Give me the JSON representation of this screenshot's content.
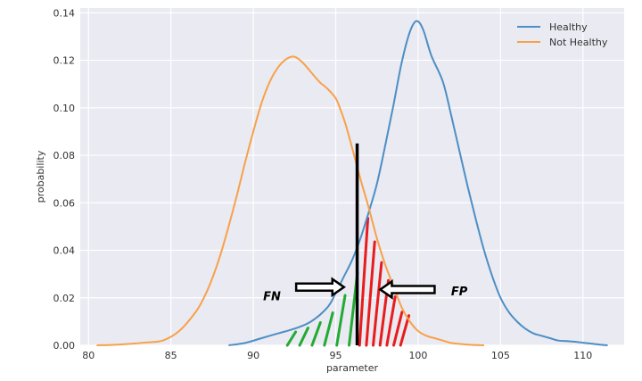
{
  "chart_data": {
    "type": "line",
    "xlabel": "parameter",
    "ylabel": "probability",
    "xlim": [
      79.5,
      112.5
    ],
    "ylim": [
      0,
      0.142
    ],
    "x_ticks": [
      80,
      85,
      90,
      95,
      100,
      105,
      110
    ],
    "y_ticks": [
      0.0,
      0.02,
      0.04,
      0.06,
      0.08,
      0.1,
      0.12,
      0.14
    ],
    "x_tick_labels": [
      "80",
      "85",
      "90",
      "95",
      "100",
      "105",
      "110"
    ],
    "y_tick_labels": [
      "0.00",
      "0.02",
      "0.04",
      "0.06",
      "0.08",
      "0.10",
      "0.12",
      "0.14"
    ],
    "grid": true,
    "background": "#eaeaf2",
    "legend_position": "top-right",
    "series": [
      {
        "name": "Healthy",
        "color": "#4c8fc4",
        "points": [
          [
            88.5,
            0.0
          ],
          [
            89.5,
            0.001
          ],
          [
            90.5,
            0.003
          ],
          [
            91.5,
            0.005
          ],
          [
            92.5,
            0.007
          ],
          [
            93.5,
            0.01
          ],
          [
            94.5,
            0.016
          ],
          [
            95.0,
            0.022
          ],
          [
            95.5,
            0.029
          ],
          [
            96.0,
            0.036
          ],
          [
            96.5,
            0.045
          ],
          [
            97.0,
            0.056
          ],
          [
            97.5,
            0.068
          ],
          [
            98.0,
            0.084
          ],
          [
            98.5,
            0.101
          ],
          [
            99.0,
            0.119
          ],
          [
            99.5,
            0.132
          ],
          [
            99.9,
            0.1365
          ],
          [
            100.3,
            0.133
          ],
          [
            100.8,
            0.122
          ],
          [
            101.5,
            0.111
          ],
          [
            102.0,
            0.097
          ],
          [
            102.5,
            0.082
          ],
          [
            103.0,
            0.067
          ],
          [
            103.5,
            0.053
          ],
          [
            104.0,
            0.04
          ],
          [
            104.5,
            0.029
          ],
          [
            105.0,
            0.02
          ],
          [
            105.5,
            0.014
          ],
          [
            106.0,
            0.01
          ],
          [
            106.5,
            0.007
          ],
          [
            107.0,
            0.005
          ],
          [
            107.5,
            0.004
          ],
          [
            108.0,
            0.003
          ],
          [
            108.5,
            0.002
          ],
          [
            109.0,
            0.0018
          ],
          [
            109.5,
            0.0015
          ],
          [
            110.0,
            0.0011
          ],
          [
            110.5,
            0.0007
          ],
          [
            111.0,
            0.0003
          ],
          [
            111.5,
            0.0
          ]
        ]
      },
      {
        "name": "Not Healthy",
        "color": "#f7a14a",
        "points": [
          [
            80.5,
            0.0
          ],
          [
            81.5,
            0.0002
          ],
          [
            82.5,
            0.0006
          ],
          [
            83.5,
            0.0012
          ],
          [
            84.5,
            0.002
          ],
          [
            85.5,
            0.006
          ],
          [
            86.5,
            0.014
          ],
          [
            87.0,
            0.02
          ],
          [
            87.5,
            0.028
          ],
          [
            88.0,
            0.038
          ],
          [
            88.5,
            0.05
          ],
          [
            89.0,
            0.063
          ],
          [
            89.5,
            0.077
          ],
          [
            90.0,
            0.09
          ],
          [
            90.5,
            0.102
          ],
          [
            91.0,
            0.111
          ],
          [
            91.5,
            0.117
          ],
          [
            92.0,
            0.1205
          ],
          [
            92.5,
            0.1215
          ],
          [
            93.0,
            0.119
          ],
          [
            93.5,
            0.115
          ],
          [
            94.0,
            0.111
          ],
          [
            94.5,
            0.108
          ],
          [
            95.0,
            0.104
          ],
          [
            95.3,
            0.099
          ],
          [
            95.6,
            0.093
          ],
          [
            96.0,
            0.083
          ],
          [
            96.5,
            0.07
          ],
          [
            97.0,
            0.058
          ],
          [
            97.5,
            0.045
          ],
          [
            98.0,
            0.034
          ],
          [
            98.5,
            0.025
          ],
          [
            99.0,
            0.016
          ],
          [
            99.5,
            0.01
          ],
          [
            100.0,
            0.006
          ],
          [
            100.5,
            0.004
          ],
          [
            101.0,
            0.003
          ],
          [
            101.5,
            0.002
          ],
          [
            102.0,
            0.001
          ],
          [
            103.0,
            0.0003
          ],
          [
            104.0,
            0.0
          ]
        ]
      }
    ],
    "threshold": {
      "x": 96.3,
      "y_top": 0.085,
      "color": "#000000"
    },
    "fn_hatch": {
      "label": "FN",
      "color": "#22aa33",
      "x_from": 91.8,
      "x_to": 96.3,
      "under_series": "Healthy"
    },
    "fp_hatch": {
      "label": "FP",
      "color": "#e81c1c",
      "x_from": 96.3,
      "x_to": 99.2,
      "under_series": "Not Healthy"
    },
    "annotations": [
      {
        "text": "FN",
        "x": 90.6,
        "y": 0.019,
        "arrow_dir": "right",
        "arrow_x0": 92.6,
        "arrow_x1": 95.5,
        "arrow_y": 0.0245
      },
      {
        "text": "FP",
        "x": 102.0,
        "y": 0.021,
        "arrow_dir": "left",
        "arrow_x0": 101.0,
        "arrow_x1": 97.7,
        "arrow_y": 0.0235
      }
    ]
  }
}
